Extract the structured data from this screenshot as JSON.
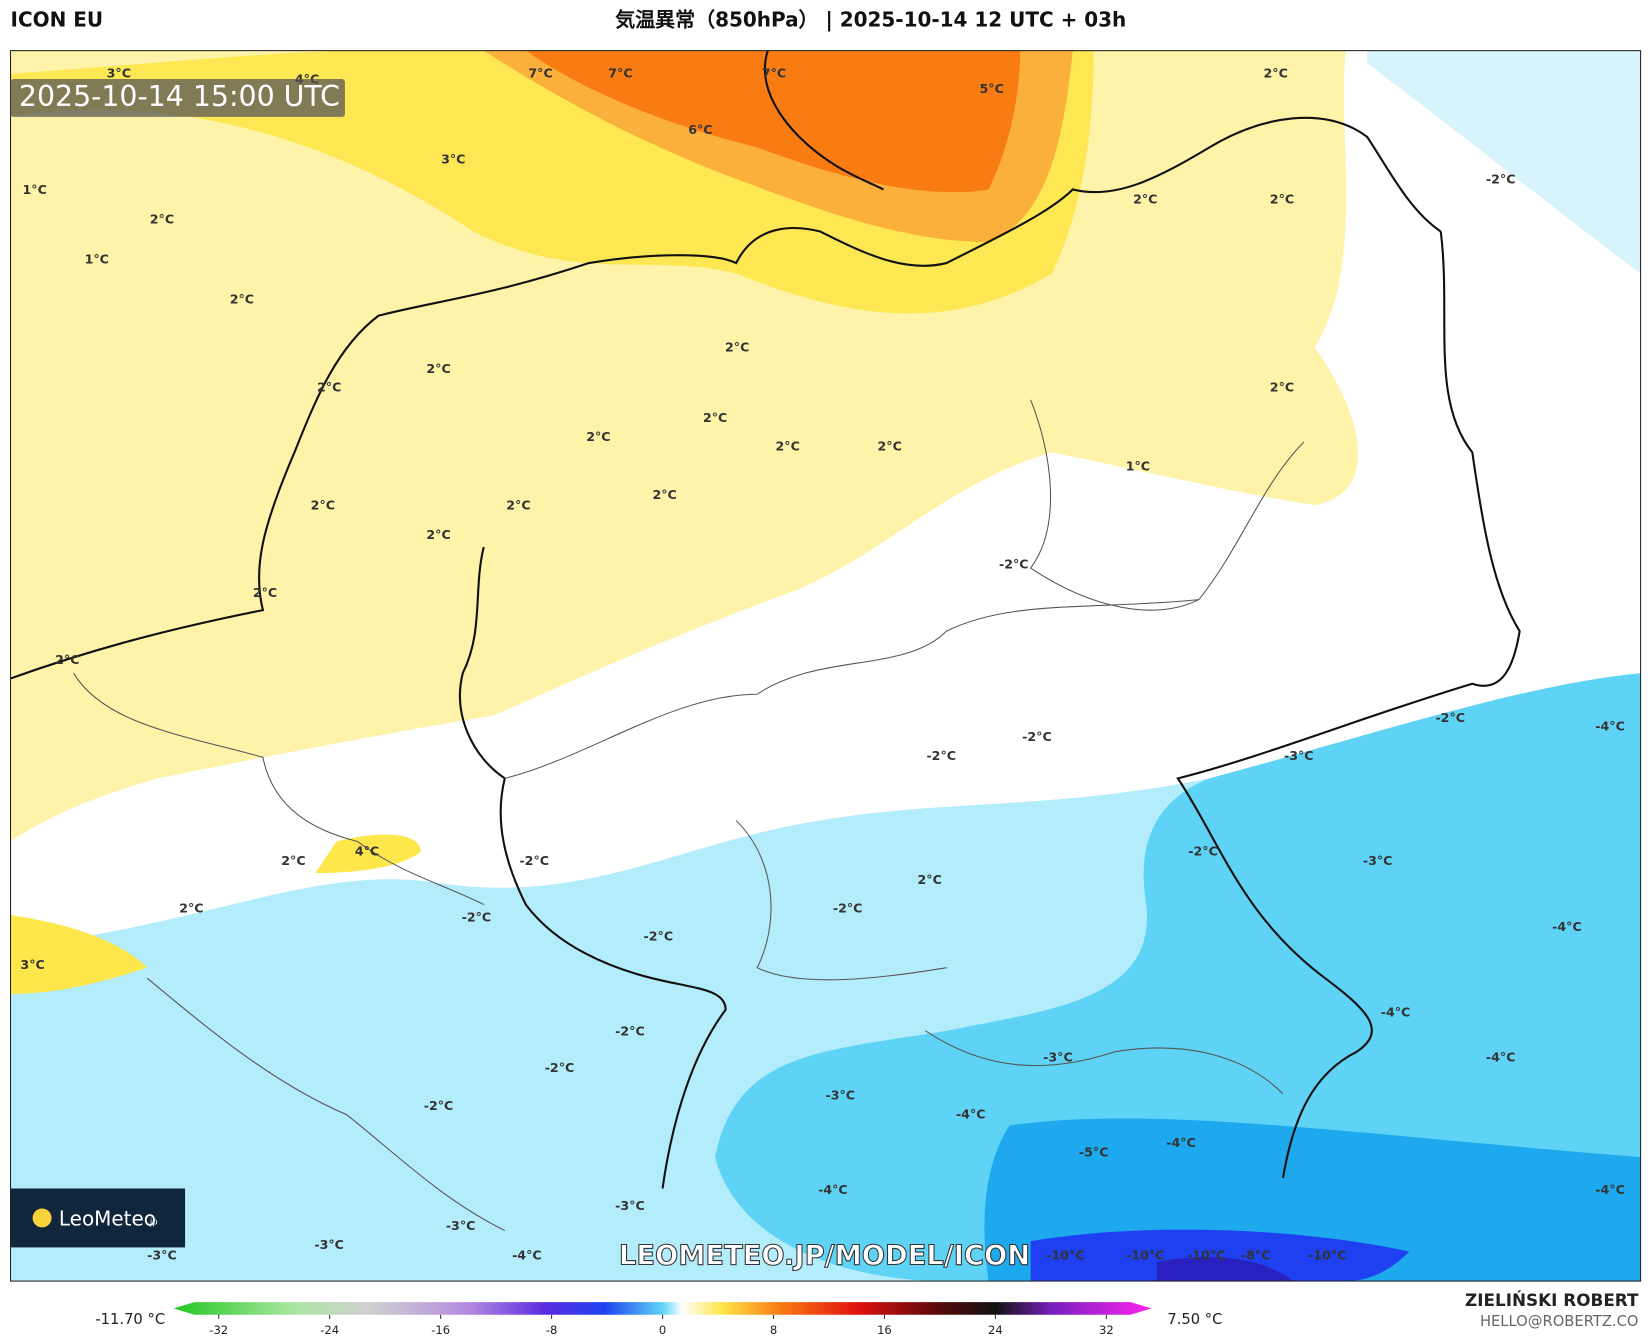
{
  "header": {
    "model": "ICON EU",
    "title": "気温異常（850hPa） | 2025-10-14 12 UTC + 03h"
  },
  "map": {
    "timestamp": "2025-10-14 15:00 UTC",
    "watermark": "LEOMETEO.JP/MODEL/ICON",
    "logo": {
      "name": "LeoMeteo",
      "suffix": ".jp"
    },
    "labels": [
      "3°C",
      "4°C",
      "7°C",
      "7°C",
      "7°C",
      "5°C",
      "2°C",
      "6°C",
      "3°C",
      "1°C",
      "2°C",
      "1°C",
      "2°C",
      "2°C",
      "2°C",
      "-2°C",
      "2°C",
      "2°C",
      "2°C",
      "2°C",
      "2°C",
      "2°C",
      "2°C",
      "2°C",
      "1°C",
      "2°C",
      "2°C",
      "2°C",
      "2°C",
      "-2°C",
      "2°C",
      "2°C",
      "-2°C",
      "-4°C",
      "-2°C",
      "-2°C",
      "-3°C",
      "-2°C",
      "-3°C",
      "2°C",
      "4°C",
      "-2°C",
      "2°C",
      "2°C",
      "-2°C",
      "-2°C",
      "-2°C",
      "-4°C",
      "3°C",
      "-4°C",
      "-2°C",
      "-3°C",
      "-4°C",
      "-2°C",
      "-3°C",
      "-2°C",
      "-4°C",
      "-5°C",
      "-4°C",
      "-4°C",
      "-4°C",
      "-3°C",
      "-3°C",
      "-3°C",
      "-4°C",
      "-3°C",
      "-10°C",
      "-10°C",
      "-10°C",
      "-8°C",
      "-10°C"
    ]
  },
  "footer": {
    "min": "-11.70 °C",
    "max": "7.50 °C",
    "author": "ZIELIŃSKI ROBERT",
    "email": "HELLO@ROBERTZ.CO",
    "colorbar_ticks": [
      -32,
      -24,
      -16,
      -8,
      0,
      8,
      16,
      24,
      32
    ]
  }
}
